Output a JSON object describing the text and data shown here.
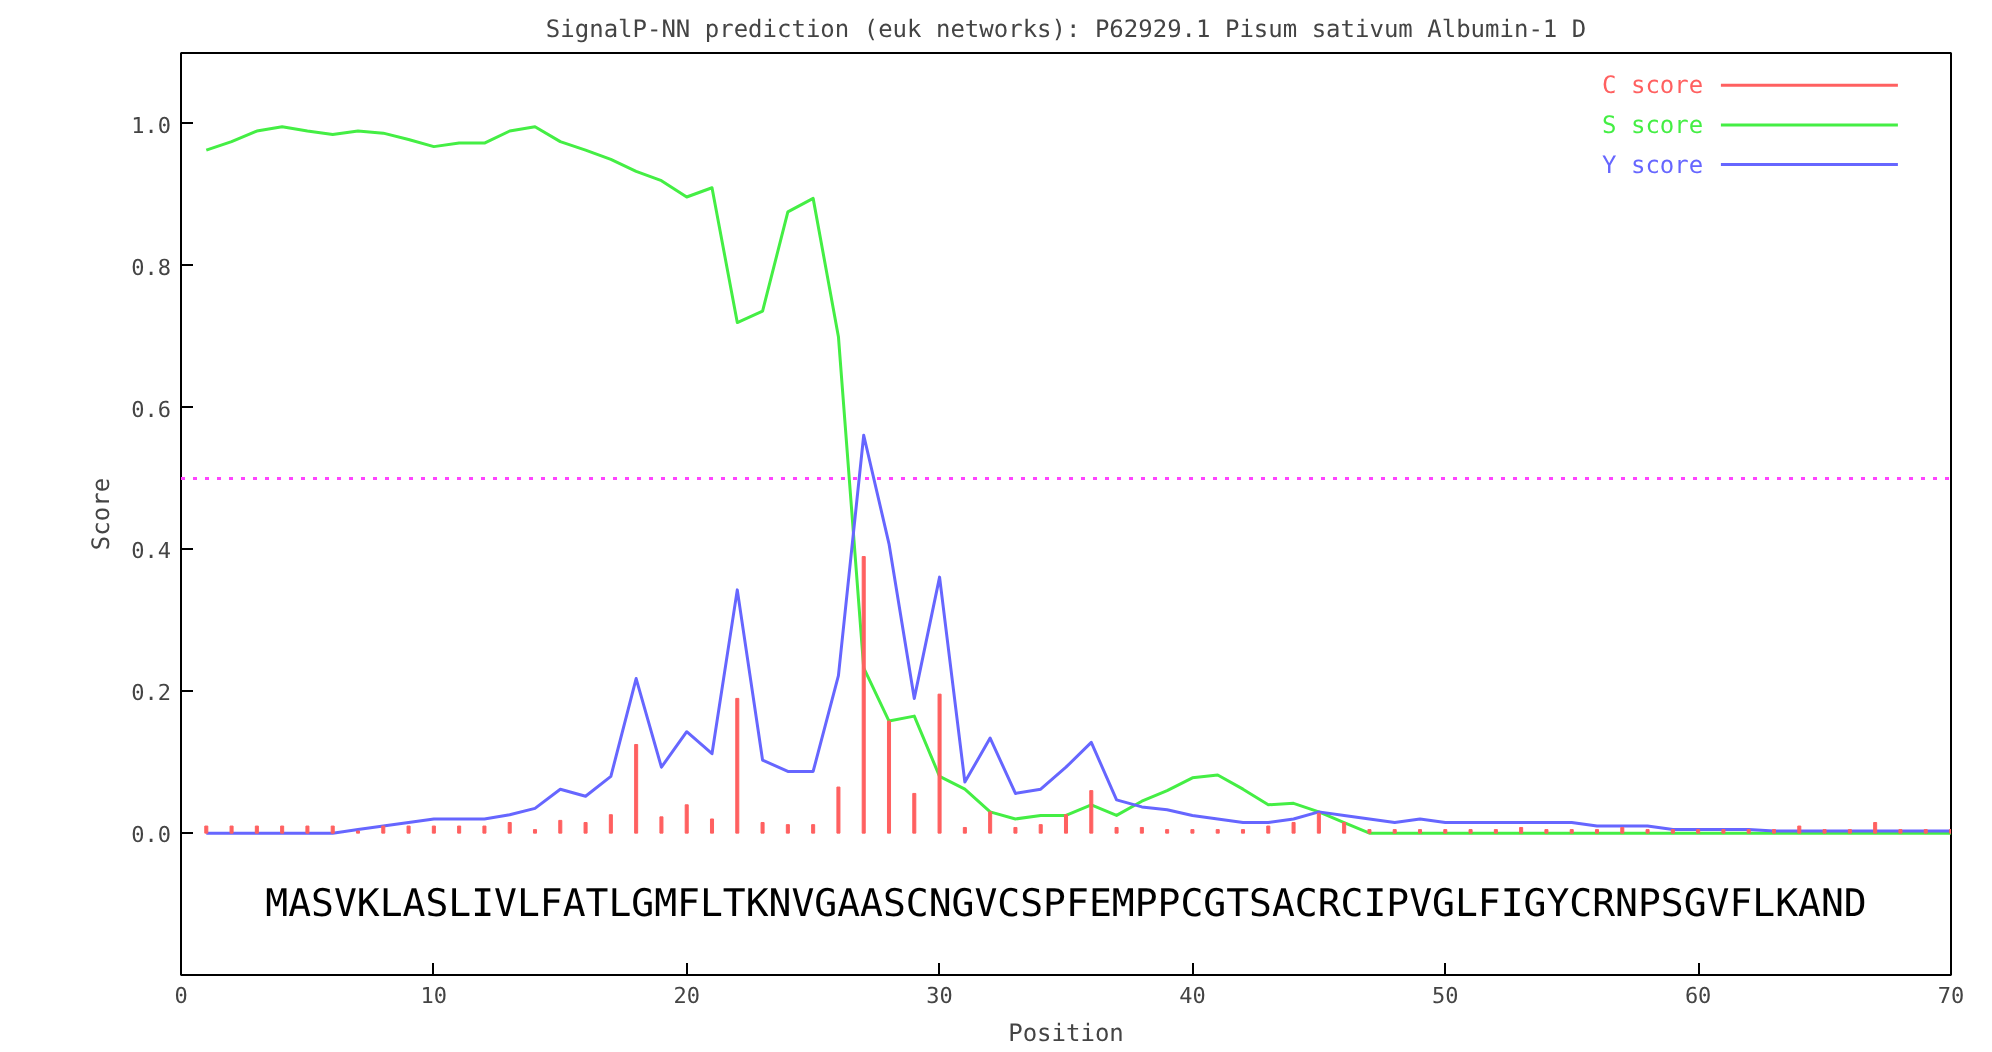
{
  "chart_data": {
    "type": "line",
    "title": "SignalP-NN prediction (euk networks): P62929.1 Pisum sativum Albumin-1 D",
    "xlabel": "Position",
    "ylabel": "Score",
    "x": [
      1,
      2,
      3,
      4,
      5,
      6,
      7,
      8,
      9,
      10,
      11,
      12,
      13,
      14,
      15,
      16,
      17,
      18,
      19,
      20,
      21,
      22,
      23,
      24,
      25,
      26,
      27,
      28,
      29,
      30,
      31,
      32,
      33,
      34,
      35,
      36,
      37,
      38,
      39,
      40,
      41,
      42,
      43,
      44,
      45,
      46,
      47,
      48,
      49,
      50,
      51,
      52,
      53,
      54,
      55,
      56,
      57,
      58,
      59,
      60,
      61,
      62,
      63,
      64,
      65,
      66,
      67,
      68,
      69,
      70
    ],
    "series": [
      {
        "name": "C score",
        "type": "bar",
        "color": "#ff6060",
        "values": [
          0.01,
          0.01,
          0.01,
          0.01,
          0.01,
          0.01,
          0.003,
          0.01,
          0.01,
          0.01,
          0.01,
          0.01,
          0.015,
          0.005,
          0.018,
          0.015,
          0.026,
          0.125,
          0.023,
          0.04,
          0.02,
          0.19,
          0.015,
          0.012,
          0.012,
          0.065,
          0.39,
          0.158,
          0.056,
          0.196,
          0.008,
          0.03,
          0.008,
          0.012,
          0.026,
          0.06,
          0.008,
          0.008,
          0.005,
          0.005,
          0.005,
          0.005,
          0.01,
          0.015,
          0.028,
          0.015,
          0.005,
          0.005,
          0.005,
          0.005,
          0.005,
          0.005,
          0.008,
          0.005,
          0.005,
          0.005,
          0.008,
          0.005,
          0.005,
          0.005,
          0.005,
          0.005,
          0.005,
          0.01,
          0.005,
          0.005,
          0.015,
          0.005,
          0.005,
          0.005
        ]
      },
      {
        "name": "S score",
        "color": "#44ee44",
        "values": [
          0.963,
          0.975,
          0.99,
          0.996,
          0.99,
          0.985,
          0.99,
          0.987,
          0.978,
          0.968,
          0.973,
          0.973,
          0.99,
          0.996,
          0.975,
          0.963,
          0.95,
          0.933,
          0.92,
          0.897,
          0.91,
          0.72,
          0.736,
          0.876,
          0.895,
          0.7,
          0.233,
          0.158,
          0.165,
          0.08,
          0.062,
          0.03,
          0.02,
          0.025,
          0.025,
          0.04,
          0.025,
          0.045,
          0.06,
          0.078,
          0.082,
          0.062,
          0.04,
          0.042,
          0.03,
          0.015,
          0.0,
          0.0,
          0.0,
          0.0,
          0.0,
          0.0,
          0.0,
          0.0,
          0.0,
          0.0,
          0.0,
          0.0,
          0.0,
          0.0,
          0.0,
          0.0,
          0.0,
          0.0,
          0.0,
          0.0,
          0.0,
          0.0,
          0.0,
          0.0
        ]
      },
      {
        "name": "Y score",
        "color": "#6666ff",
        "values": [
          0.0,
          0.0,
          0.0,
          0.0,
          0.0,
          0.0,
          0.005,
          0.01,
          0.015,
          0.02,
          0.02,
          0.02,
          0.026,
          0.035,
          0.062,
          0.052,
          0.08,
          0.218,
          0.093,
          0.143,
          0.112,
          0.343,
          0.103,
          0.087,
          0.087,
          0.222,
          0.561,
          0.408,
          0.19,
          0.361,
          0.072,
          0.134,
          0.056,
          0.062,
          0.093,
          0.128,
          0.047,
          0.037,
          0.033,
          0.025,
          0.02,
          0.015,
          0.015,
          0.02,
          0.03,
          0.025,
          0.02,
          0.015,
          0.02,
          0.015,
          0.015,
          0.015,
          0.015,
          0.015,
          0.015,
          0.01,
          0.01,
          0.01,
          0.005,
          0.005,
          0.005,
          0.005,
          0.003,
          0.003,
          0.003,
          0.003,
          0.003,
          0.003,
          0.003,
          0.003
        ]
      }
    ],
    "xlim": [
      0,
      70
    ],
    "xticks": [
      0,
      10,
      20,
      30,
      40,
      50,
      60,
      70
    ],
    "ylim": [
      -0.2,
      1.1
    ],
    "yticks": [
      {
        "value": 0,
        "label": "0.0"
      },
      {
        "value": 0.2,
        "label": "0.2"
      },
      {
        "value": 0.4,
        "label": "0.4"
      },
      {
        "value": 0.6,
        "label": "0.6"
      },
      {
        "value": 0.8,
        "label": "0.8"
      },
      {
        "value": 1,
        "label": "1.0"
      }
    ],
    "ref_lines": [
      {
        "axis": "y",
        "value": 0.5,
        "color": "#ff44ff",
        "line_style": "dotted"
      }
    ],
    "legend": "top right",
    "grid": false,
    "annotations": [
      "MASVKLASLIVLFATLGMFLTKNVGAASCNGVCSPFEMPPCGTSACRCIPVGLFIGYCRNPSGVFLKAND"
    ]
  }
}
